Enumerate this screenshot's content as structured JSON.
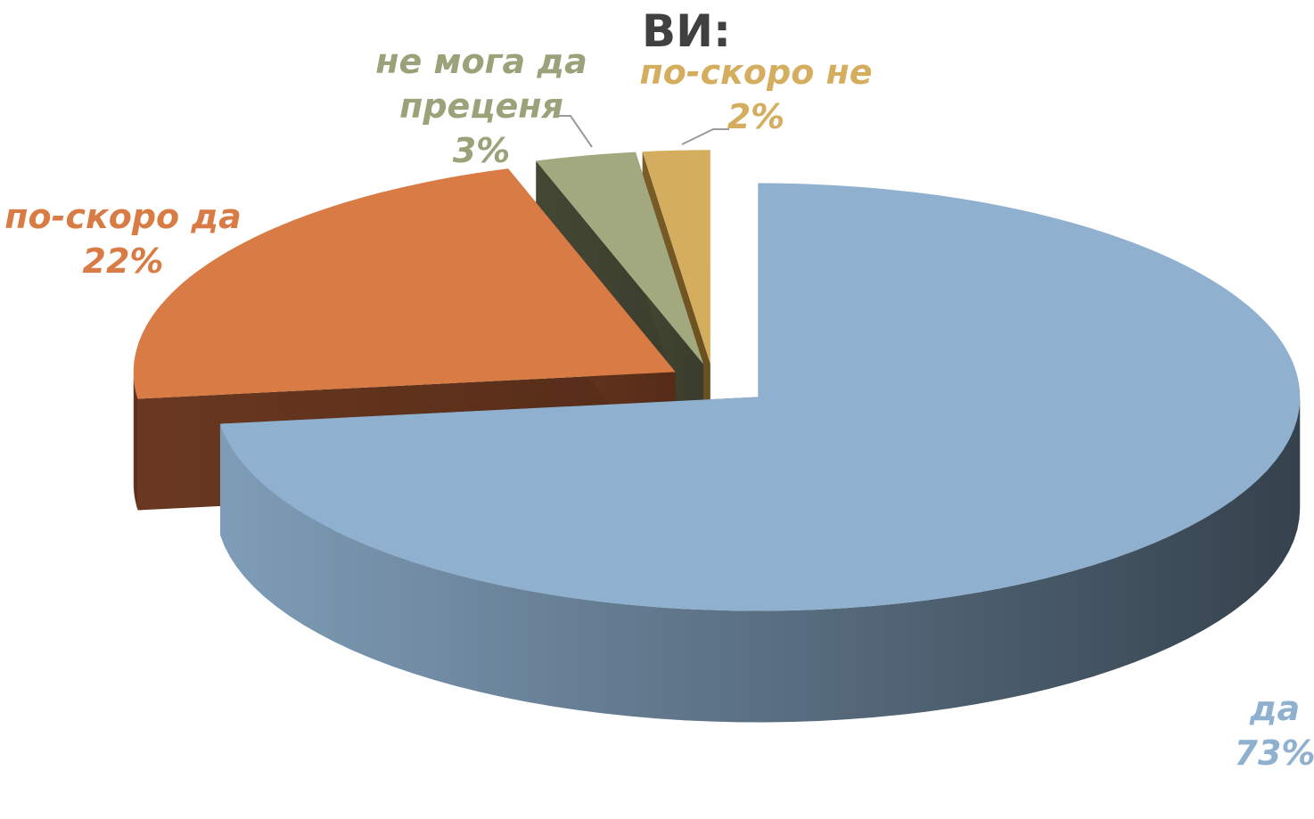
{
  "chart_data": {
    "type": "pie",
    "title": "ВИ:",
    "categories": [
      "да",
      "по-скоро да",
      "не мога да преценя",
      "по-скоро не"
    ],
    "values": [
      73,
      22,
      3,
      2
    ],
    "value_labels": [
      "73%",
      "22%",
      "3%",
      "2%"
    ],
    "colors": [
      "#8fb0cf",
      "#d97b45",
      "#a3a97f",
      "#d4ae5e"
    ]
  }
}
